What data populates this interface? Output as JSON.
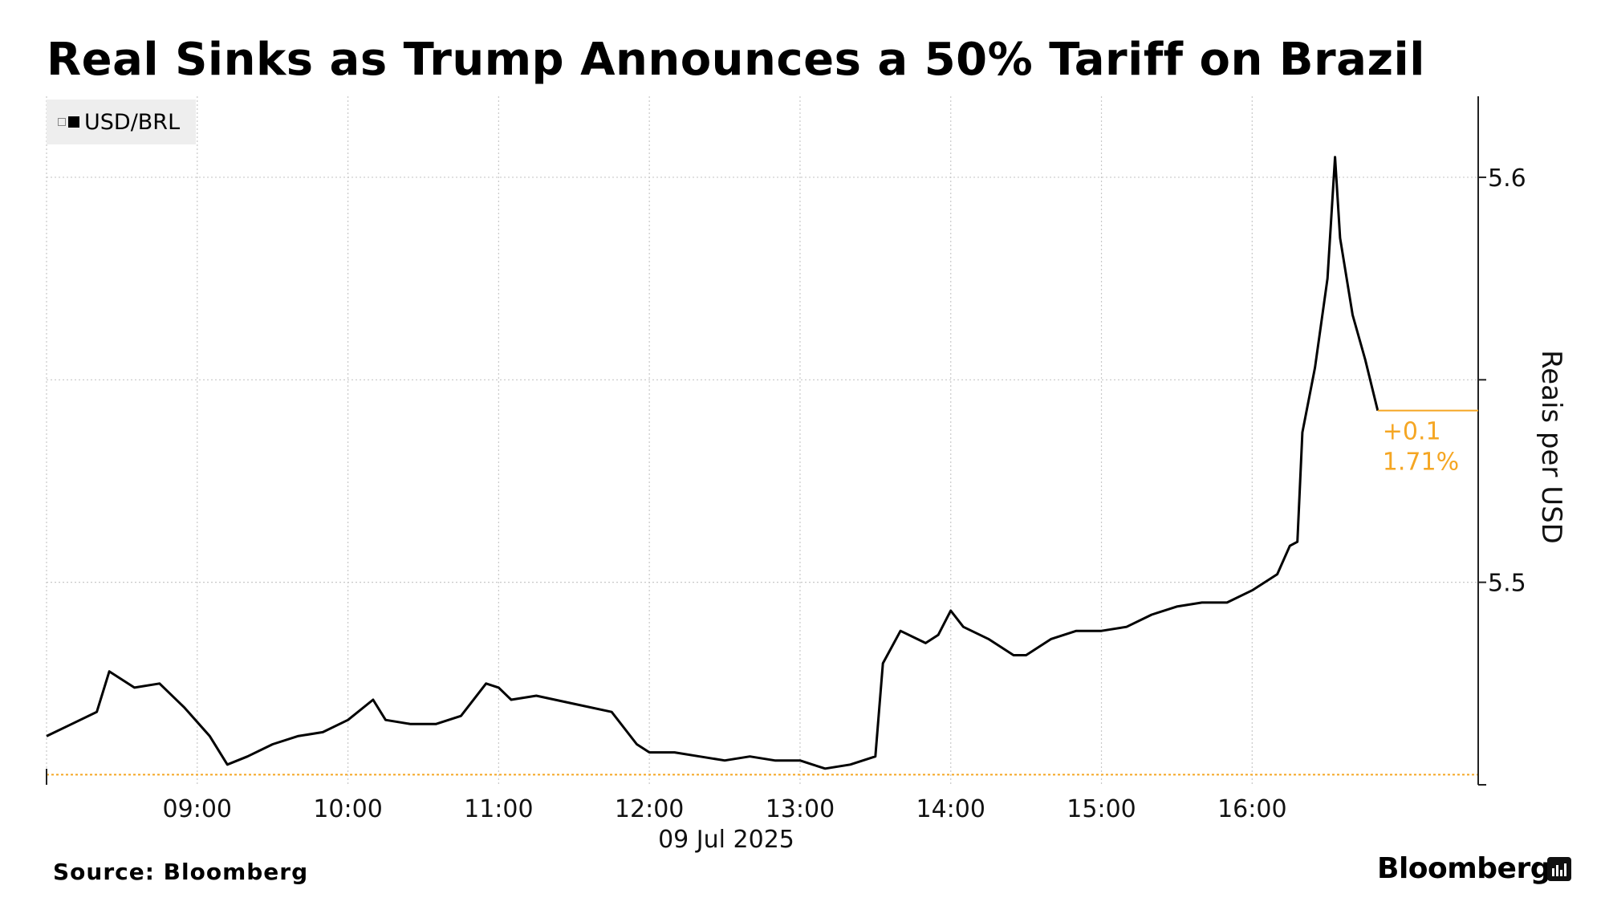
{
  "title": "Real Sinks as Trump Announces a 50% Tariff on Brazil",
  "legend": {
    "label": "USD/BRL"
  },
  "source": "Source: Bloomberg",
  "brand": "Bloomberg",
  "colors": {
    "line": "#000000",
    "reference": "#f5a623",
    "grid": "#c8c8c8"
  },
  "icons": [
    "legend-toggle-icon",
    "bloomberg-logo-icon"
  ],
  "chart_data": {
    "type": "line",
    "title": "Real Sinks as Trump Announces a 50% Tariff on Brazil",
    "ylabel": "Reais per USD",
    "xlabel": "09 Jul 2025",
    "date_label": "09 Jul 2025",
    "x_ticks": [
      "09:00",
      "10:00",
      "11:00",
      "12:00",
      "13:00",
      "14:00",
      "15:00",
      "16:00"
    ],
    "y_ticks": [
      5.5,
      5.6
    ],
    "ylim": [
      5.45,
      5.62
    ],
    "xlim": [
      "08:00",
      "17:30"
    ],
    "grid": true,
    "y_axis_side": "right",
    "legend_position": "top-left",
    "reference_level": 5.4525,
    "annotation": {
      "change": "+0.1",
      "percent": "1.71%"
    },
    "last_value": 5.5424,
    "series": [
      {
        "name": "USD/BRL",
        "x": [
          "08:00",
          "08:10",
          "08:20",
          "08:25",
          "08:35",
          "08:45",
          "08:55",
          "09:05",
          "09:12",
          "09:20",
          "09:30",
          "09:40",
          "09:50",
          "10:00",
          "10:10",
          "10:15",
          "10:25",
          "10:35",
          "10:45",
          "10:55",
          "11:00",
          "11:05",
          "11:15",
          "11:30",
          "11:45",
          "11:55",
          "12:00",
          "12:10",
          "12:20",
          "12:30",
          "12:40",
          "12:50",
          "13:00",
          "13:05",
          "13:10",
          "13:20",
          "13:30",
          "13:33",
          "13:40",
          "13:50",
          "13:55",
          "14:00",
          "14:05",
          "14:15",
          "14:25",
          "14:30",
          "14:40",
          "14:50",
          "15:00",
          "15:10",
          "15:20",
          "15:30",
          "15:40",
          "15:50",
          "16:00",
          "16:10",
          "16:15",
          "16:18",
          "16:20",
          "16:25",
          "16:30",
          "16:33",
          "16:35",
          "16:40",
          "16:45",
          "16:50"
        ],
        "y": [
          5.462,
          5.465,
          5.468,
          5.478,
          5.474,
          5.475,
          5.469,
          5.462,
          5.455,
          5.457,
          5.46,
          5.462,
          5.463,
          5.466,
          5.471,
          5.466,
          5.465,
          5.465,
          5.467,
          5.475,
          5.474,
          5.471,
          5.472,
          5.47,
          5.468,
          5.46,
          5.458,
          5.458,
          5.457,
          5.456,
          5.457,
          5.456,
          5.456,
          5.455,
          5.454,
          5.455,
          5.457,
          5.48,
          5.488,
          5.485,
          5.487,
          5.493,
          5.489,
          5.486,
          5.482,
          5.482,
          5.486,
          5.488,
          5.488,
          5.489,
          5.492,
          5.494,
          5.495,
          5.495,
          5.498,
          5.502,
          5.509,
          5.51,
          5.537,
          5.553,
          5.575,
          5.605,
          5.585,
          5.566,
          5.555,
          5.5424
        ]
      }
    ]
  }
}
